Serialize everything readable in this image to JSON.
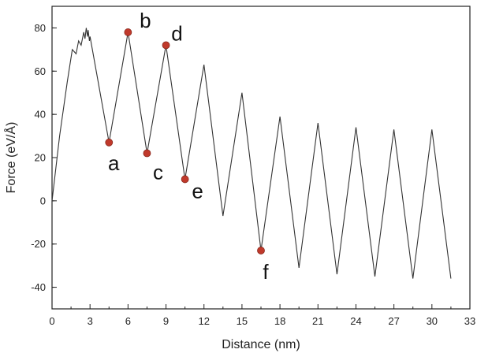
{
  "chart_data": {
    "type": "line",
    "title": "",
    "xlabel": "Distance (nm)",
    "ylabel": "Force (eV/Å)",
    "xlim": [
      0,
      33
    ],
    "ylim": [
      -50,
      90
    ],
    "xticks": [
      0,
      3,
      6,
      9,
      12,
      15,
      18,
      21,
      24,
      27,
      30,
      33
    ],
    "yticks": [
      -40,
      -20,
      0,
      20,
      40,
      60,
      80
    ],
    "grid": false,
    "line_color": "#333333",
    "marker_color": "#c0392b",
    "series": [
      {
        "x": [
          0,
          0.6,
          1.2,
          1.6,
          1.9,
          2.1,
          2.3,
          2.5,
          2.6,
          2.7,
          2.8,
          2.85,
          2.95,
          3.0,
          4.5,
          6.0,
          7.5,
          9.0,
          10.5,
          12.0,
          13.5,
          15.0,
          16.5,
          18.0,
          19.5,
          21.0,
          22.5,
          24.0,
          25.5,
          27.0,
          28.5,
          30.0,
          31.5
        ],
        "y": [
          0,
          30,
          55,
          70,
          68,
          74,
          72,
          78,
          75,
          80,
          76,
          79,
          74,
          76,
          27,
          78,
          22,
          72,
          10,
          63,
          -7,
          50,
          -23,
          39,
          -31,
          36,
          -34,
          34,
          -35,
          33,
          -36,
          33,
          -36
        ]
      }
    ],
    "points": [
      {
        "label": "a",
        "x": 4.5,
        "y": 27
      },
      {
        "label": "b",
        "x": 6.0,
        "y": 78
      },
      {
        "label": "c",
        "x": 7.5,
        "y": 22
      },
      {
        "label": "d",
        "x": 9.0,
        "y": 72
      },
      {
        "label": "e",
        "x": 10.5,
        "y": 10
      },
      {
        "label": "f",
        "x": 16.5,
        "y": -23
      }
    ]
  }
}
